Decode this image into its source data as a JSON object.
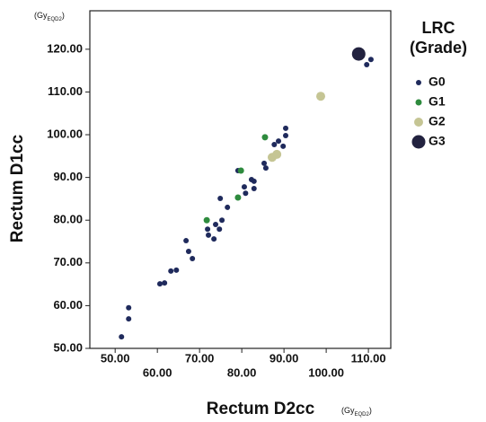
{
  "chart_data": {
    "type": "scatter",
    "x_label": "Rectum D2cc",
    "y_label": "Rectum D1cc",
    "x_unit": {
      "main": "(Gy",
      "sub": "EQD2",
      "close": ")"
    },
    "y_unit": {
      "main": "(Gy",
      "sub": "EQD2",
      "close": ")"
    },
    "legend_title": [
      "LRC",
      "(Grade)"
    ],
    "legend_position": "right",
    "xlim": [
      44,
      115.3
    ],
    "ylim": [
      50,
      129
    ],
    "xticks": [
      {
        "value": 50,
        "label": "50.00"
      },
      {
        "value": 60,
        "label": "60.00"
      },
      {
        "value": 70,
        "label": "70.00"
      },
      {
        "value": 80,
        "label": "80.00"
      },
      {
        "value": 90,
        "label": "90.00"
      },
      {
        "value": 100,
        "label": "100.00"
      },
      {
        "value": 110,
        "label": "110.00"
      }
    ],
    "yticks": [
      {
        "value": 50,
        "label": "50.00"
      },
      {
        "value": 60,
        "label": "60.00"
      },
      {
        "value": 70,
        "label": "70.00"
      },
      {
        "value": 80,
        "label": "80.00"
      },
      {
        "value": 90,
        "label": "90.00"
      },
      {
        "value": 100,
        "label": "100.00"
      },
      {
        "value": 110,
        "label": "110.00"
      },
      {
        "value": 120,
        "label": "120.00"
      }
    ],
    "series": [
      {
        "name": "G0",
        "color": "#1f2a5c",
        "x": [
          51.5,
          53.2,
          53.2,
          60.6,
          61.7,
          63.2,
          64.5,
          66.8,
          67.4,
          68.3,
          71.9,
          72.1,
          73.4,
          73.8,
          74.7,
          75.3,
          74.9,
          76.6,
          79.1,
          80.9,
          80.6,
          82.3,
          82.9,
          82.9,
          85.3,
          85.7,
          87.7,
          88.7,
          89.8,
          90.4,
          90.4,
          109.6,
          110.6
        ],
        "values": [
          52.7,
          59.5,
          56.9,
          65.1,
          65.3,
          68.1,
          68.3,
          75.2,
          72.7,
          71.0,
          77.9,
          76.5,
          75.6,
          79.0,
          77.9,
          80.0,
          85.1,
          83.0,
          91.6,
          86.3,
          87.8,
          89.5,
          87.4,
          89.1,
          93.3,
          92.2,
          97.7,
          98.5,
          97.3,
          99.8,
          101.5,
          116.4,
          117.6
        ]
      },
      {
        "name": "G1",
        "color": "#2e8b3e",
        "x": [
          71.7,
          79.1,
          79.8,
          85.5
        ],
        "values": [
          80.0,
          85.3,
          91.6,
          99.4
        ]
      },
      {
        "name": "G2",
        "color": "#c5c594",
        "x": [
          87.2,
          88.3,
          98.7
        ],
        "values": [
          94.7,
          95.4,
          109.0
        ]
      },
      {
        "name": "G3",
        "color": "#22223f",
        "x": [
          107.7
        ],
        "values": [
          118.9
        ]
      }
    ]
  }
}
